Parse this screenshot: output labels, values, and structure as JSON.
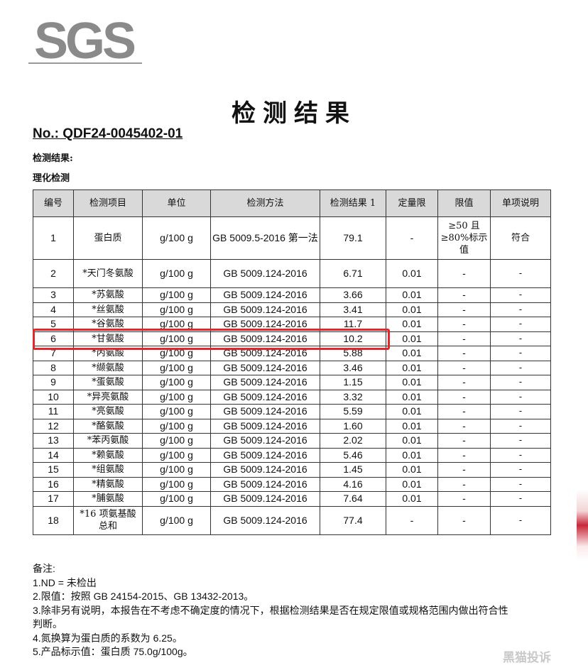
{
  "logo": "SGS",
  "title": "检测结果",
  "report_no": "No.: QDF24-0045402-01",
  "section1": "检测结果:",
  "section2": "理化检测",
  "headers": [
    "编号",
    "检测项目",
    "单位",
    "检测方法",
    "检测结果 1",
    "定量限",
    "限值",
    "单项说明"
  ],
  "rows": [
    [
      "1",
      "蛋白质",
      "g/100 g",
      "GB 5009.5-2016 第一法",
      "79.1",
      "-",
      "≥50 且 ≥80%标示值",
      "符合"
    ],
    [
      "2",
      "*天门冬氨酸",
      "g/100 g",
      "GB 5009.124-2016",
      "6.71",
      "0.01",
      "-",
      "-"
    ],
    [
      "3",
      "*苏氨酸",
      "g/100 g",
      "GB 5009.124-2016",
      "3.66",
      "0.01",
      "-",
      "-"
    ],
    [
      "4",
      "*丝氨酸",
      "g/100 g",
      "GB 5009.124-2016",
      "3.41",
      "0.01",
      "-",
      "-"
    ],
    [
      "5",
      "*谷氨酸",
      "g/100 g",
      "GB 5009.124-2016",
      "11.7",
      "0.01",
      "-",
      "-"
    ],
    [
      "6",
      "*甘氨酸",
      "g/100 g",
      "GB 5009.124-2016",
      "10.2",
      "0.01",
      "-",
      "-"
    ],
    [
      "7",
      "*丙氨酸",
      "g/100 g",
      "GB 5009.124-2016",
      "5.88",
      "0.01",
      "-",
      "-"
    ],
    [
      "8",
      "*缬氨酸",
      "g/100 g",
      "GB 5009.124-2016",
      "3.46",
      "0.01",
      "-",
      "-"
    ],
    [
      "9",
      "*蛋氨酸",
      "g/100 g",
      "GB 5009.124-2016",
      "1.15",
      "0.01",
      "-",
      "-"
    ],
    [
      "10",
      "*异亮氨酸",
      "g/100 g",
      "GB 5009.124-2016",
      "3.32",
      "0.01",
      "-",
      "-"
    ],
    [
      "11",
      "*亮氨酸",
      "g/100 g",
      "GB 5009.124-2016",
      "5.59",
      "0.01",
      "-",
      "-"
    ],
    [
      "12",
      "*酪氨酸",
      "g/100 g",
      "GB 5009.124-2016",
      "1.60",
      "0.01",
      "-",
      "-"
    ],
    [
      "13",
      "*苯丙氨酸",
      "g/100 g",
      "GB 5009.124-2016",
      "2.02",
      "0.01",
      "-",
      "-"
    ],
    [
      "14",
      "*赖氨酸",
      "g/100 g",
      "GB 5009.124-2016",
      "5.46",
      "0.01",
      "-",
      "-"
    ],
    [
      "15",
      "*组氨酸",
      "g/100 g",
      "GB 5009.124-2016",
      "1.45",
      "0.01",
      "-",
      "-"
    ],
    [
      "16",
      "*精氨酸",
      "g/100 g",
      "GB 5009.124-2016",
      "4.16",
      "0.01",
      "-",
      "-"
    ],
    [
      "17",
      "*脯氨酸",
      "g/100 g",
      "GB 5009.124-2016",
      "7.64",
      "0.01",
      "-",
      "-"
    ],
    [
      "18",
      "*16 项氨基酸总和",
      "g/100 g",
      "GB 5009.124-2016",
      "77.4",
      "-",
      "-",
      "-"
    ]
  ],
  "highlight_color": "#e4262b",
  "notes": [
    "备注:",
    "1.ND = 未检出",
    "2.限值：按照 GB 24154-2015、GB 13432-2013。",
    "3.除非另有说明，本报告在不考虑不确定度的情况下，根据检测结果是否在规定限值或规格范围内做出符合性",
    "判断。",
    "4.氮换算为蛋白质的系数为 6.25。",
    "5.产品标示值：蛋白质 75.0g/100g。"
  ],
  "watermark": "黑猫投诉"
}
